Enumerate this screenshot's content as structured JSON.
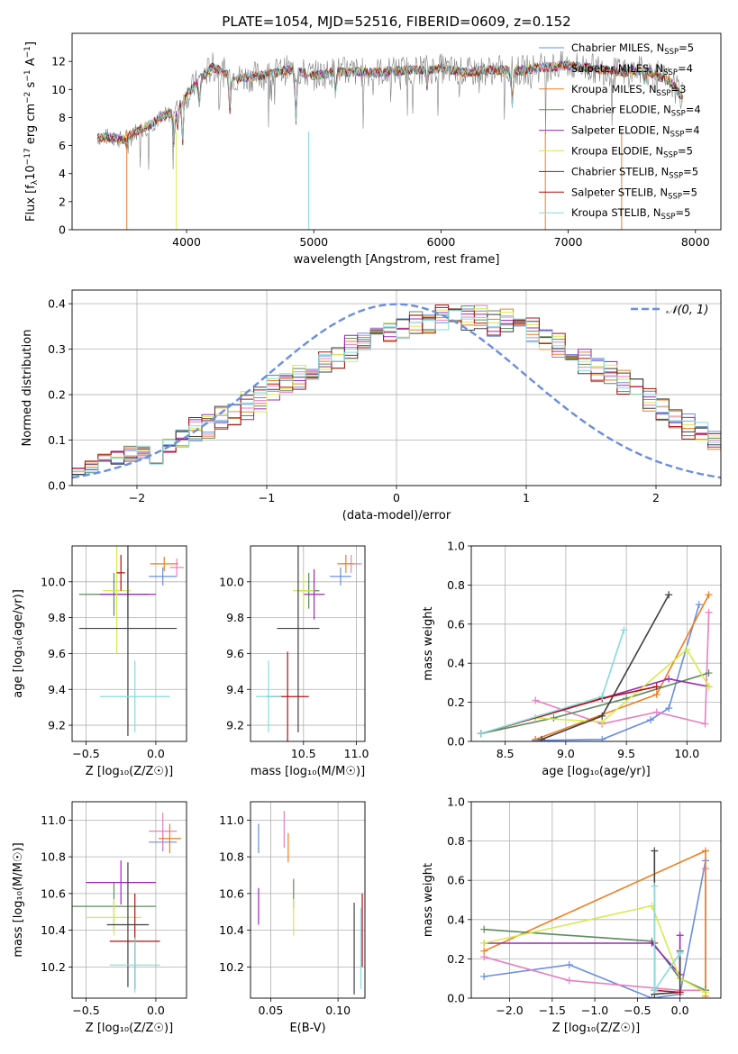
{
  "title": "PLATE=1054, MJD=52516, FIBERID=0609, z=0.152",
  "colors": {
    "chabrier_miles": "#6a8ee0",
    "salpeter_miles": "#e77fc2",
    "kroupa_miles": "#f07d1e",
    "chabrier_elodie": "#5c8b5c",
    "salpeter_elodie": "#9b28b9",
    "kroupa_elodie": "#d7ea4a",
    "chabrier_stelib": "#404040",
    "salpeter_stelib": "#b01010",
    "kroupa_stelib": "#86dadc",
    "data": "#808080",
    "normal": "#6a8ee0"
  },
  "legend_spectrum": [
    {
      "label": "Chabrier MILES, N",
      "sub": "SSP",
      "tail": "=5",
      "color": "#6a8ee0"
    },
    {
      "label": "Salpeter MILES, N",
      "sub": "SSP",
      "tail": "=4",
      "color": "#e77fc2"
    },
    {
      "label": "Kroupa MILES, N",
      "sub": "SSP",
      "tail": "=3",
      "color": "#f07d1e"
    },
    {
      "label": "Chabrier ELODIE, N",
      "sub": "SSP",
      "tail": "=4",
      "color": "#5c8b5c"
    },
    {
      "label": "Salpeter ELODIE, N",
      "sub": "SSP",
      "tail": "=4",
      "color": "#9b28b9"
    },
    {
      "label": "Kroupa ELODIE, N",
      "sub": "SSP",
      "tail": "=5",
      "color": "#d7ea4a"
    },
    {
      "label": "Chabrier STELIB, N",
      "sub": "SSP",
      "tail": "=5",
      "color": "#404040"
    },
    {
      "label": "Salpeter STELIB, N",
      "sub": "SSP",
      "tail": "=5",
      "color": "#b01010"
    },
    {
      "label": "Kroupa STELIB, N",
      "sub": "SSP",
      "tail": "=5",
      "color": "#86dadc"
    }
  ],
  "chart_data": [
    {
      "type": "line",
      "xlabel": "wavelength [Angstrom, rest frame]",
      "ylabel": "Flux [f",
      "ylabel_parts": [
        "Flux [f",
        "λ",
        "10",
        "−17",
        " erg cm",
        "−2",
        " s",
        "−1",
        " A",
        "−1",
        "]"
      ],
      "xlim": [
        3100,
        8200
      ],
      "ylim": [
        0,
        14
      ],
      "xticks": [
        4000,
        5000,
        6000,
        7000,
        8000
      ],
      "yticks": [
        0,
        2,
        4,
        6,
        8,
        10,
        12
      ],
      "series": [
        {
          "name": "model",
          "x": [
            3300,
            3400,
            3500,
            3600,
            3700,
            3800,
            3900,
            4000,
            4100,
            4200,
            4400,
            4600,
            4800,
            5000,
            5200,
            5400,
            5600,
            5800,
            6000,
            6200,
            6400,
            6600,
            6800,
            7000,
            7200,
            7400,
            7600,
            7800,
            7900
          ],
          "y": [
            6.6,
            6.6,
            6.4,
            7.0,
            7.4,
            8.0,
            8.4,
            9.6,
            10.6,
            11.6,
            10.8,
            11.0,
            11.4,
            11.0,
            11.3,
            11.2,
            11.3,
            11.4,
            11.5,
            11.2,
            11.4,
            11.3,
            11.6,
            11.7,
            11.5,
            11.2,
            11.4,
            10.6,
            9.4
          ]
        }
      ]
    },
    {
      "type": "bar",
      "xlabel": "(data-model)/error",
      "ylabel": "Normed distribution",
      "xlim": [
        -2.5,
        2.5
      ],
      "ylim": [
        0,
        0.43
      ],
      "xticks": [
        -2,
        -1,
        0,
        1,
        2
      ],
      "yticks": [
        0.0,
        0.1,
        0.2,
        0.3,
        0.4
      ],
      "legend": "𝒩(0, 1)",
      "bin_width": 0.1,
      "bin_start": -2.5,
      "values": [
        0.03,
        0.04,
        0.06,
        0.06,
        0.07,
        0.08,
        0.07,
        0.09,
        0.1,
        0.12,
        0.13,
        0.15,
        0.16,
        0.18,
        0.19,
        0.21,
        0.23,
        0.24,
        0.25,
        0.27,
        0.28,
        0.3,
        0.32,
        0.33,
        0.34,
        0.35,
        0.36,
        0.36,
        0.37,
        0.38,
        0.37,
        0.37,
        0.36,
        0.36,
        0.35,
        0.34,
        0.32,
        0.31,
        0.29,
        0.27,
        0.26,
        0.25,
        0.23,
        0.21,
        0.19,
        0.17,
        0.15,
        0.13,
        0.12,
        0.1,
        0.09,
        0.08,
        0.07,
        0.06,
        0.05,
        0.05,
        0.04,
        0.04,
        0.03,
        0.03
      ],
      "spread": [
        0.01,
        0.015,
        0.012,
        0.02,
        0.018,
        0.022,
        0.025,
        0.02,
        0.025,
        0.03,
        0.028,
        0.032,
        0.03,
        0.035,
        0.03,
        0.033,
        0.028,
        0.03,
        0.035,
        0.025,
        0.03,
        0.032,
        0.03,
        0.028,
        0.025,
        0.03,
        0.028,
        0.03,
        0.03,
        0.025,
        0.03,
        0.028,
        0.032,
        0.03,
        0.025,
        0.03,
        0.028,
        0.03,
        0.035,
        0.03,
        0.032,
        0.028,
        0.03,
        0.025,
        0.028,
        0.03,
        0.025,
        0.028,
        0.02,
        0.022,
        0.02,
        0.018,
        0.015,
        0.02,
        0.015,
        0.012,
        0.01,
        0.012,
        0.01,
        0.01
      ]
    },
    {
      "type": "scatter",
      "xlabel": "Z [log₁₀(Z/Z☉)]",
      "ylabel": "age  [log₁₀(age/yr)]",
      "xlim": [
        -0.6,
        0.22
      ],
      "ylim": [
        9.11,
        10.2
      ],
      "xticks": [
        -0.5,
        0.0
      ],
      "yticks": [
        9.2,
        9.4,
        9.6,
        9.8,
        10.0
      ],
      "points": [
        {
          "x": 0.05,
          "y": 10.03,
          "xerr": 0.1,
          "yerr": 0.05,
          "series": "Chabrier MILES"
        },
        {
          "x": 0.15,
          "y": 10.08,
          "xerr": 0.05,
          "yerr": 0.05,
          "series": "Salpeter MILES"
        },
        {
          "x": 0.06,
          "y": 10.1,
          "xerr": 0.1,
          "yerr": 0.04,
          "series": "Kroupa MILES"
        },
        {
          "x": -0.3,
          "y": 9.93,
          "xerr": 0.25,
          "yerr": 0.12,
          "series": "Chabrier ELODIE"
        },
        {
          "x": -0.2,
          "y": 9.93,
          "xerr": 0.2,
          "yerr": 0.14,
          "series": "Salpeter ELODIE"
        },
        {
          "x": -0.28,
          "y": 9.95,
          "xerr": 0.1,
          "yerr": 0.35,
          "series": "Kroupa ELODIE"
        },
        {
          "x": -0.2,
          "y": 9.74,
          "xerr": 0.35,
          "yerr": 0.6,
          "series": "Chabrier STELIB"
        },
        {
          "x": -0.25,
          "y": 10.05,
          "xerr": 0.03,
          "yerr": 0.1,
          "series": "Salpeter STELIB"
        },
        {
          "x": -0.15,
          "y": 9.36,
          "xerr": 0.25,
          "yerr": 0.2,
          "series": "Kroupa STELIB"
        }
      ]
    },
    {
      "type": "scatter",
      "xlabel": "mass [log₁₀(M/M☉)]",
      "ylabel": "",
      "xlim": [
        10.0,
        11.08
      ],
      "ylim": [
        9.11,
        10.2
      ],
      "xticks": [
        10.5,
        11.0
      ],
      "yticks": [
        9.2,
        9.4,
        9.6,
        9.8,
        10.0
      ],
      "points": [
        {
          "x": 10.85,
          "y": 10.03,
          "xerr": 0.1,
          "yerr": 0.05,
          "series": "Chabrier MILES"
        },
        {
          "x": 10.95,
          "y": 10.1,
          "xerr": 0.1,
          "yerr": 0.05,
          "series": "Salpeter MILES"
        },
        {
          "x": 10.9,
          "y": 10.1,
          "xerr": 0.08,
          "yerr": 0.05,
          "series": "Kroupa MILES"
        },
        {
          "x": 10.55,
          "y": 9.95,
          "xerr": 0.1,
          "yerr": 0.1,
          "series": "Chabrier ELODIE"
        },
        {
          "x": 10.6,
          "y": 9.93,
          "xerr": 0.1,
          "yerr": 0.14,
          "series": "Salpeter ELODIE"
        },
        {
          "x": 10.5,
          "y": 9.95,
          "xerr": 0.1,
          "yerr": 0.1,
          "series": "Kroupa ELODIE"
        },
        {
          "x": 10.45,
          "y": 9.74,
          "xerr": 0.2,
          "yerr": 0.58,
          "series": "Chabrier STELIB"
        },
        {
          "x": 10.35,
          "y": 9.36,
          "xerr": 0.2,
          "yerr": 0.25,
          "series": "Salpeter STELIB"
        },
        {
          "x": 10.17,
          "y": 9.36,
          "xerr": 0.12,
          "yerr": 0.2,
          "series": "Kroupa STELIB"
        }
      ]
    },
    {
      "type": "line",
      "xlabel": "age  [log₁₀(age/yr)]",
      "ylabel": "mass weight",
      "xlim": [
        8.22,
        10.28
      ],
      "ylim": [
        0,
        1
      ],
      "xticks": [
        8.5,
        9.0,
        9.5,
        10.0
      ],
      "yticks": [
        0.0,
        0.2,
        0.4,
        0.6,
        0.8,
        1.0
      ],
      "series": [
        {
          "name": "Chabrier MILES",
          "x": [
            8.75,
            9.3,
            9.7,
            9.85,
            10.1
          ],
          "y": [
            0.005,
            0.01,
            0.11,
            0.17,
            0.7
          ]
        },
        {
          "name": "Salpeter MILES",
          "x": [
            8.75,
            9.3,
            9.75,
            10.15,
            10.18
          ],
          "y": [
            0.21,
            0.09,
            0.15,
            0.09,
            0.66
          ]
        },
        {
          "name": "Kroupa MILES",
          "x": [
            8.75,
            9.75,
            10.18
          ],
          "y": [
            0.01,
            0.24,
            0.75
          ]
        },
        {
          "name": "Chabrier ELODIE",
          "x": [
            8.3,
            8.9,
            9.5,
            10.18
          ],
          "y": [
            0.04,
            0.12,
            0.22,
            0.35
          ]
        },
        {
          "name": "Salpeter ELODIE",
          "x": [
            8.75,
            9.85,
            10.18
          ],
          "y": [
            0.12,
            0.32,
            0.28
          ]
        },
        {
          "name": "Kroupa ELODIE",
          "x": [
            8.75,
            9.3,
            10.0,
            10.18
          ],
          "y": [
            0.12,
            0.1,
            0.47,
            0.28
          ]
        },
        {
          "name": "Chabrier STELIB",
          "x": [
            8.8,
            9.3,
            9.85
          ],
          "y": [
            0.01,
            0.13,
            0.75
          ]
        },
        {
          "name": "Salpeter STELIB",
          "x": [
            8.3,
            9.3,
            9.75
          ],
          "y": [
            0.04,
            0.22,
            0.28
          ]
        },
        {
          "name": "Kroupa STELIB",
          "x": [
            8.3,
            9.3,
            9.48
          ],
          "y": [
            0.04,
            0.23,
            0.57
          ]
        }
      ]
    },
    {
      "type": "scatter",
      "xlabel": "Z [log₁₀(Z/Z☉)]",
      "ylabel": "mass [log₁₀(M/M☉)]",
      "xlim": [
        -0.6,
        0.22
      ],
      "ylim": [
        10.03,
        11.1
      ],
      "xticks": [
        -0.5,
        0.0
      ],
      "yticks": [
        10.2,
        10.4,
        10.6,
        10.8,
        11.0
      ],
      "points": [
        {
          "x": 0.05,
          "y": 10.88,
          "xerr": 0.1,
          "yerr": 0.05,
          "series": "Chabrier MILES"
        },
        {
          "x": 0.05,
          "y": 10.94,
          "xerr": 0.1,
          "yerr": 0.1,
          "series": "Salpeter MILES"
        },
        {
          "x": 0.1,
          "y": 10.9,
          "xerr": 0.08,
          "yerr": 0.08,
          "series": "Kroupa MILES"
        },
        {
          "x": -0.3,
          "y": 10.53,
          "xerr": 0.3,
          "yerr": 0.13,
          "series": "Chabrier ELODIE"
        },
        {
          "x": -0.25,
          "y": 10.66,
          "xerr": 0.25,
          "yerr": 0.12,
          "series": "Salpeter ELODIE"
        },
        {
          "x": -0.3,
          "y": 10.47,
          "xerr": 0.2,
          "yerr": 0.1,
          "series": "Kroupa ELODIE"
        },
        {
          "x": -0.2,
          "y": 10.43,
          "xerr": 0.15,
          "yerr": 0.34,
          "series": "Chabrier STELIB"
        },
        {
          "x": -0.15,
          "y": 10.34,
          "xerr": 0.18,
          "yerr": 0.26,
          "series": "Salpeter STELIB"
        },
        {
          "x": -0.15,
          "y": 10.21,
          "xerr": 0.18,
          "yerr": 0.15,
          "series": "Kroupa STELIB"
        }
      ]
    },
    {
      "type": "scatter",
      "xlabel": "E(B-V)",
      "ylabel": "",
      "xlim": [
        0.035,
        0.12
      ],
      "ylim": [
        10.03,
        11.1
      ],
      "xticks": [
        0.05,
        0.1
      ],
      "yticks": [
        10.2,
        10.4,
        10.6,
        10.8,
        11.0
      ],
      "points": [
        {
          "x": 0.041,
          "y": 10.9,
          "xerr": 0,
          "yerr": 0.08,
          "series": "Chabrier MILES"
        },
        {
          "x": 0.06,
          "y": 10.95,
          "xerr": 0,
          "yerr": 0.1,
          "series": "Salpeter MILES"
        },
        {
          "x": 0.063,
          "y": 10.85,
          "xerr": 0,
          "yerr": 0.08,
          "series": "Kroupa MILES"
        },
        {
          "x": 0.067,
          "y": 10.6,
          "xerr": 0,
          "yerr": 0.08,
          "series": "Chabrier ELODIE"
        },
        {
          "x": 0.041,
          "y": 10.53,
          "xerr": 0,
          "yerr": 0.1,
          "series": "Salpeter ELODIE"
        },
        {
          "x": 0.067,
          "y": 10.47,
          "xerr": 0,
          "yerr": 0.1,
          "series": "Kroupa ELODIE"
        },
        {
          "x": 0.112,
          "y": 10.3,
          "xerr": 0,
          "yerr": 0.25,
          "series": "Chabrier STELIB"
        },
        {
          "x": 0.118,
          "y": 10.4,
          "xerr": 0,
          "yerr": 0.2,
          "series": "Salpeter STELIB"
        },
        {
          "x": 0.117,
          "y": 10.3,
          "xerr": 0,
          "yerr": 0.22,
          "series": "Kroupa STELIB"
        }
      ]
    },
    {
      "type": "line",
      "xlabel": "Z [log₁₀(Z/Z☉)]",
      "ylabel": "mass weight",
      "xlim": [
        -2.45,
        0.48
      ],
      "ylim": [
        0,
        1
      ],
      "xticks": [
        -2.0,
        -1.5,
        -1.0,
        -0.5,
        0.0
      ],
      "yticks": [
        0.0,
        0.2,
        0.4,
        0.6,
        0.8,
        1.0
      ],
      "series": [
        {
          "name": "Chabrier MILES",
          "x": [
            -2.3,
            -1.3,
            -0.33,
            0.0,
            0.3
          ],
          "y": [
            0.11,
            0.17,
            0.0,
            0.02,
            0.7
          ]
        },
        {
          "name": "Salpeter MILES",
          "x": [
            -2.3,
            -1.3,
            0.0,
            0.3,
            0.3
          ],
          "y": [
            0.21,
            0.09,
            0.04,
            0.04,
            0.66
          ]
        },
        {
          "name": "Kroupa MILES",
          "x": [
            -2.3,
            0.3,
            0.3
          ],
          "y": [
            0.24,
            0.75,
            0.01
          ]
        },
        {
          "name": "Chabrier ELODIE",
          "x": [
            -2.3,
            -0.33,
            0.0,
            0.3
          ],
          "y": [
            0.35,
            0.29,
            0.1,
            0.04
          ]
        },
        {
          "name": "Salpeter ELODIE",
          "x": [
            -2.3,
            -0.33,
            0.0,
            0.0
          ],
          "y": [
            0.28,
            0.28,
            0.12,
            0.32
          ]
        },
        {
          "name": "Kroupa ELODIE",
          "x": [
            -2.3,
            -0.33,
            0.0,
            0.3
          ],
          "y": [
            0.28,
            0.47,
            0.1,
            0.03
          ]
        },
        {
          "name": "Chabrier STELIB",
          "x": [
            -0.3,
            -0.3,
            0.0,
            0.0
          ],
          "y": [
            0.75,
            0.02,
            0.03,
            0.24
          ]
        },
        {
          "name": "Salpeter STELIB",
          "x": [
            -0.3,
            -0.3,
            0.0
          ],
          "y": [
            0.28,
            0.04,
            0.03
          ]
        },
        {
          "name": "Kroupa STELIB",
          "x": [
            -0.3,
            -0.3,
            0.0
          ],
          "y": [
            0.57,
            0.04,
            0.23
          ]
        }
      ]
    }
  ]
}
